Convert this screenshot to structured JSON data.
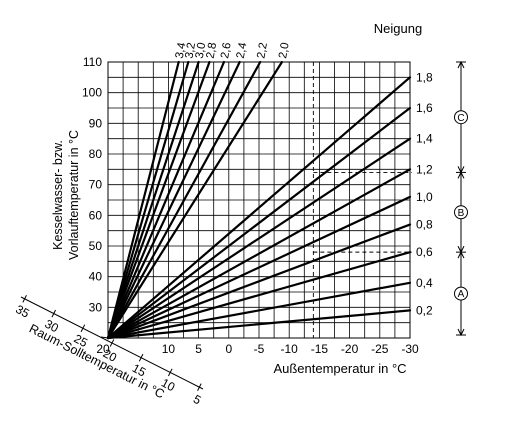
{
  "chart_data": {
    "type": "line",
    "title": "",
    "x_axis": {
      "label": "Außentemperatur in °C",
      "min": 20,
      "max": -30,
      "step": 2.5,
      "tick_labels": [
        "10",
        "5",
        "0",
        "-5",
        "-10",
        "-15",
        "-20",
        "-25",
        "-30"
      ],
      "tick_values": [
        10,
        5,
        0,
        -5,
        -10,
        -15,
        -20,
        -25,
        -30
      ],
      "origin_label": "20"
    },
    "y_axis": {
      "label_line1": "Kesselwasser- bzw.",
      "label_line2": "Vorlauftemperatur in °C",
      "min": 20,
      "max": 110,
      "step": 5,
      "tick_labels": [
        "110",
        "100",
        "90",
        "80",
        "70",
        "60",
        "50",
        "40",
        "30"
      ],
      "tick_values": [
        110,
        100,
        90,
        80,
        70,
        60,
        50,
        40,
        30
      ]
    },
    "room_axis": {
      "label": "Raum-Solltemperatur in °C",
      "tick_labels": [
        "35",
        "30",
        "25",
        "20",
        "15",
        "10",
        "5"
      ]
    },
    "legend_title": "Neigung",
    "origin": [
      20,
      20
    ],
    "series": [
      {
        "name": "3,4",
        "x": [
          20,
          8.3
        ],
        "y": [
          20,
          110
        ]
      },
      {
        "name": "3,2",
        "x": [
          20,
          6.7
        ],
        "y": [
          20,
          110
        ]
      },
      {
        "name": "3,0",
        "x": [
          20,
          5.0
        ],
        "y": [
          20,
          110
        ]
      },
      {
        "name": "2,8",
        "x": [
          20,
          3.2
        ],
        "y": [
          20,
          110
        ]
      },
      {
        "name": "2,6",
        "x": [
          20,
          0.8
        ],
        "y": [
          20,
          110
        ]
      },
      {
        "name": "2,4",
        "x": [
          20,
          -1.8
        ],
        "y": [
          20,
          110
        ]
      },
      {
        "name": "2,2",
        "x": [
          20,
          -5.2
        ],
        "y": [
          20,
          110
        ]
      },
      {
        "name": "2,0",
        "x": [
          20,
          -8.8
        ],
        "y": [
          20,
          110
        ]
      },
      {
        "name": "1,8",
        "x": [
          20,
          -30
        ],
        "y": [
          20,
          105
        ]
      },
      {
        "name": "1,6",
        "x": [
          20,
          -30
        ],
        "y": [
          20,
          95
        ]
      },
      {
        "name": "1,4",
        "x": [
          20,
          -30
        ],
        "y": [
          20,
          85
        ]
      },
      {
        "name": "1,2",
        "x": [
          20,
          -30
        ],
        "y": [
          20,
          75
        ]
      },
      {
        "name": "1,0",
        "x": [
          20,
          -30
        ],
        "y": [
          20,
          66
        ]
      },
      {
        "name": "0,8",
        "x": [
          20,
          -30
        ],
        "y": [
          20,
          57
        ]
      },
      {
        "name": "0,6",
        "x": [
          20,
          -30
        ],
        "y": [
          20,
          48
        ]
      },
      {
        "name": "0,4",
        "x": [
          20,
          -30
        ],
        "y": [
          20,
          38
        ]
      },
      {
        "name": "0,2",
        "x": [
          20,
          -30
        ],
        "y": [
          20,
          29
        ]
      }
    ],
    "dashed_lines": [
      {
        "x": -14,
        "y_from": 20,
        "y_to": 110
      },
      {
        "y": 74,
        "x_from": -14,
        "x_to": -30
      },
      {
        "y": 48,
        "x_from": -14,
        "x_to": -30
      }
    ],
    "ranges": [
      {
        "label": "C",
        "from": 110,
        "to": 74
      },
      {
        "label": "B",
        "from": 74,
        "to": 48
      },
      {
        "label": "A",
        "from": 48,
        "to": 20
      }
    ],
    "grid": true
  }
}
